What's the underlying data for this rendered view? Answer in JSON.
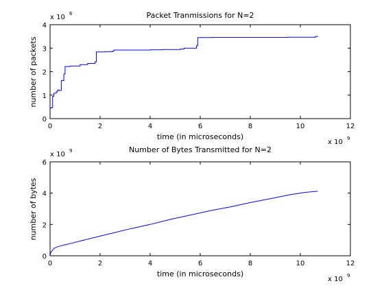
{
  "chart_data": [
    {
      "type": "line",
      "title": "Packet Tranmissions for N=2",
      "xlabel": "time (in microseconds)",
      "ylabel": "number of packets",
      "x_multiplier": {
        "base": "x 10",
        "exponent": "9"
      },
      "y_multiplier": {
        "base": "x 10",
        "exponent": "6"
      },
      "xlim": [
        0,
        12
      ],
      "ylim": [
        0,
        4
      ],
      "xticks": [
        "0",
        "2",
        "4",
        "6",
        "8",
        "10",
        "12"
      ],
      "yticks": [
        "0",
        "1",
        "2",
        "3",
        "4"
      ],
      "step": true,
      "color": "#0000ff",
      "grid": false,
      "series": [
        {
          "x": [
            0,
            0.05,
            0.1,
            0.15,
            0.25,
            0.3,
            0.35,
            0.45,
            0.55,
            0.6,
            0.7,
            0.8,
            0.9,
            1.2,
            1.5,
            1.8,
            1.85,
            2.2,
            2.5,
            2.55,
            3.0,
            4.0,
            4.5,
            5.2,
            5.35,
            5.85,
            5.9,
            6.5,
            7.5,
            8.5,
            9.5,
            10.5,
            10.6,
            10.7
          ],
          "y": [
            0.45,
            0.47,
            0.95,
            1.08,
            1.15,
            1.22,
            1.2,
            1.62,
            1.9,
            2.22,
            2.22,
            2.24,
            2.24,
            2.3,
            2.35,
            2.42,
            2.84,
            2.85,
            2.88,
            2.92,
            2.92,
            2.93,
            2.94,
            2.96,
            3.0,
            3.1,
            3.45,
            3.46,
            3.46,
            3.46,
            3.47,
            3.47,
            3.5,
            3.51
          ]
        }
      ]
    },
    {
      "type": "line",
      "title": "Number of Bytes Transmitted for N=2",
      "xlabel": "time (in microseconds)",
      "ylabel": "number of bytes",
      "x_multiplier": {
        "base": "x 10",
        "exponent": "9"
      },
      "y_multiplier": {
        "base": "x 10",
        "exponent": "9"
      },
      "xlim": [
        0,
        12
      ],
      "ylim": [
        0,
        6
      ],
      "xticks": [
        "0",
        "2",
        "4",
        "6",
        "8",
        "10",
        "12"
      ],
      "yticks": [
        "0",
        "2",
        "4",
        "6"
      ],
      "step": false,
      "color": "#0000ff",
      "grid": false,
      "series": [
        {
          "x": [
            0,
            0.03,
            0.08,
            0.15,
            0.25,
            0.4,
            0.6,
            0.9,
            1.3,
            1.8,
            2.5,
            3.2,
            4.0,
            4.8,
            5.6,
            6.4,
            7.2,
            8.0,
            8.8,
            9.6,
            10.2,
            10.7
          ],
          "y": [
            0,
            0.2,
            0.33,
            0.45,
            0.55,
            0.62,
            0.7,
            0.82,
            0.98,
            1.18,
            1.45,
            1.72,
            2.0,
            2.32,
            2.6,
            2.88,
            3.12,
            3.4,
            3.65,
            3.9,
            4.05,
            4.12
          ]
        }
      ]
    }
  ]
}
